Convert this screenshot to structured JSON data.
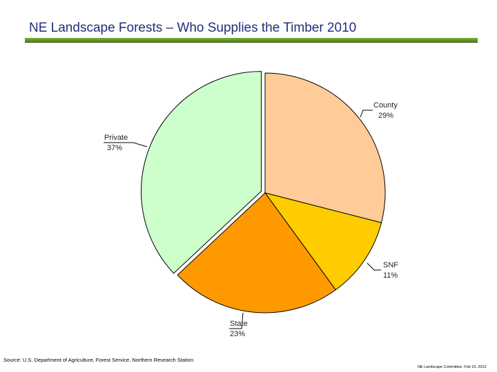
{
  "title": "NE Landscape Forests – Who Supplies the Timber 2010",
  "footer": {
    "source": "Source: U.S. Department of Agriculture, Forest Service, Northern Research Station",
    "right_note": "NE Landscape Committee, Feb 15, 2012"
  },
  "chart_data": {
    "type": "pie",
    "categories": [
      "County",
      "SNF",
      "State",
      "Private"
    ],
    "values": [
      29,
      11,
      23,
      37
    ],
    "value_labels": [
      "29%",
      "11%",
      "23%",
      "37%"
    ],
    "colors": [
      "#ffcc99",
      "#ffcc00",
      "#ff9900",
      "#ccffcc"
    ],
    "exploded": "Private"
  }
}
